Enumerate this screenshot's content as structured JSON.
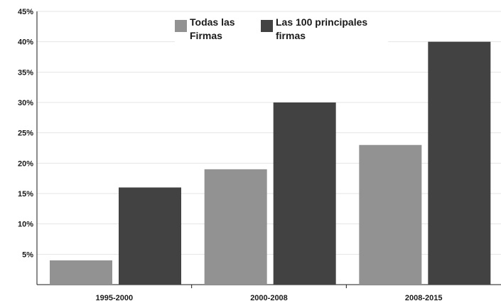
{
  "chart_data": {
    "type": "bar",
    "categories": [
      "1995-2000",
      "2000-2008",
      "2008-2015"
    ],
    "series": [
      {
        "name": "Todas las Firmas",
        "values": [
          4,
          19,
          23
        ],
        "color": "#929292"
      },
      {
        "name": "Las 100 principales firmas",
        "values": [
          16,
          30,
          40
        ],
        "color": "#424242"
      }
    ],
    "y_ticks": [
      "5%",
      "10%",
      "15%",
      "20%",
      "25%",
      "30%",
      "35%",
      "40%",
      "45%"
    ],
    "ylim": [
      0,
      45
    ],
    "grid": true,
    "legend_position": "top-center",
    "title": "",
    "xlabel": "",
    "ylabel": ""
  }
}
